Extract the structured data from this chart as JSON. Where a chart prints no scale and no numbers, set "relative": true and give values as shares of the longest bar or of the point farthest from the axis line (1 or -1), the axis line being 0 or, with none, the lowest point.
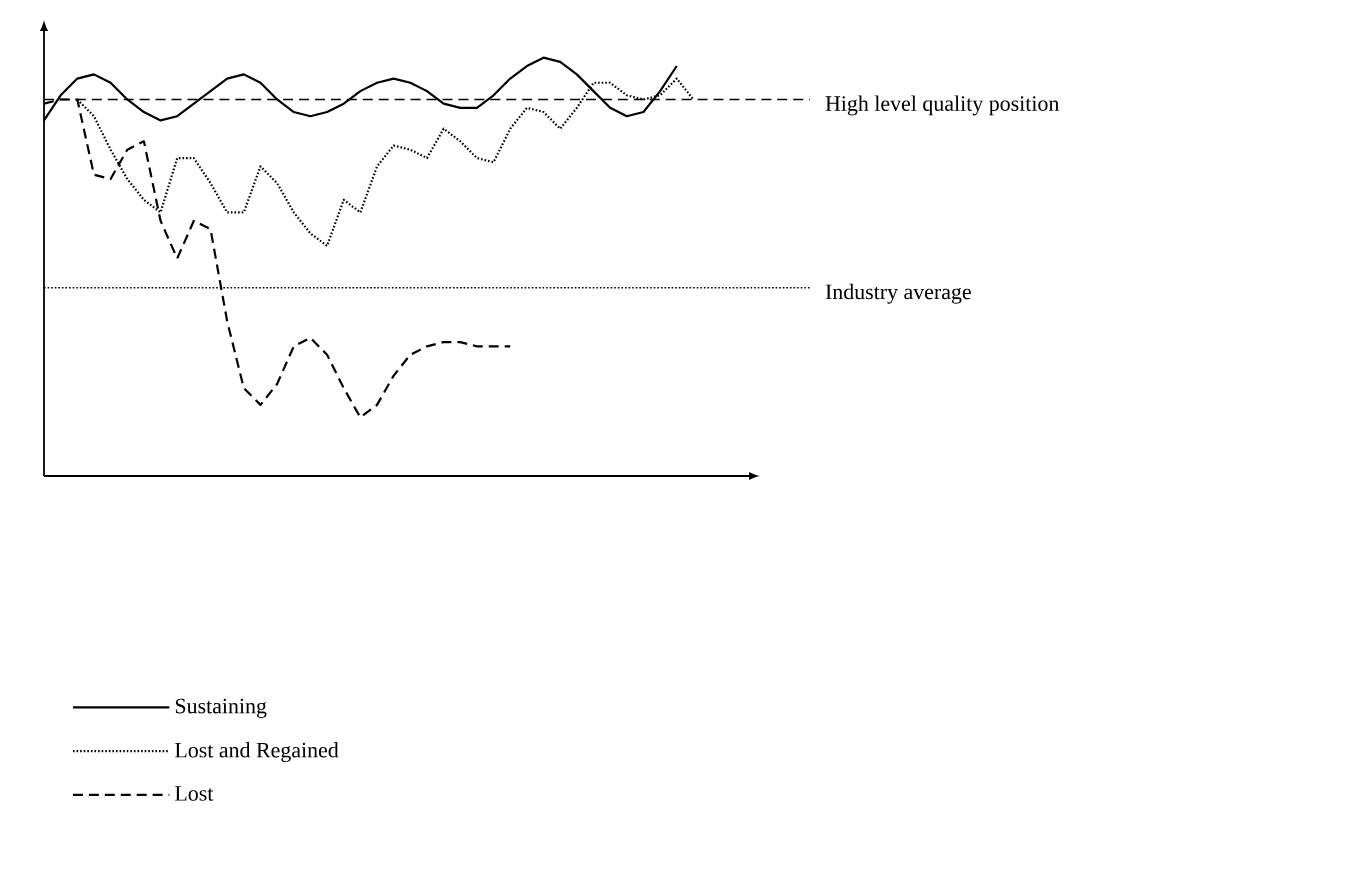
{
  "chart_data": {
    "type": "line",
    "relative": true,
    "legend": "bottom",
    "categories": [
      null,
      null,
      null,
      null,
      null,
      null,
      null,
      null,
      null,
      null,
      null,
      null,
      null,
      null,
      null,
      null,
      null,
      null,
      null,
      null,
      null,
      null,
      null,
      null,
      null,
      null,
      null,
      null,
      null,
      null,
      null,
      null,
      null,
      null,
      null,
      null,
      null,
      null,
      null,
      null
    ],
    "series": [
      {
        "name": "Sustaining",
        "color": "#000000",
        "line_style": "solid",
        "values": [
          0.85,
          0.91,
          0.95,
          0.96,
          0.94,
          0.9,
          0.87,
          0.85,
          0.86,
          0.89,
          0.92,
          0.95,
          0.96,
          0.94,
          0.9,
          0.87,
          0.86,
          0.87,
          0.89,
          0.92,
          0.94,
          0.95,
          0.94,
          0.92,
          0.89,
          0.88,
          0.88,
          0.91,
          0.95,
          0.98,
          1,
          0.99,
          0.96,
          0.92,
          0.88,
          0.86,
          0.87,
          0.92,
          0.98,
          null
        ]
      },
      {
        "name": "Lost and Regained",
        "color": "#000000",
        "line_style": "dotted",
        "values": [
          null,
          null,
          0.9,
          0.86,
          0.78,
          0.71,
          0.66,
          0.63,
          0.76,
          0.76,
          0.7,
          0.63,
          0.63,
          0.74,
          0.7,
          0.63,
          0.58,
          0.55,
          0.66,
          0.63,
          0.74,
          0.79,
          0.78,
          0.76,
          0.83,
          0.8,
          0.76,
          0.75,
          0.83,
          0.88,
          0.87,
          0.83,
          0.88,
          0.94,
          0.94,
          0.91,
          0.9,
          0.91,
          0.95,
          0.9
        ]
      },
      {
        "name": "Lost",
        "color": "#000000",
        "line_style": "dashed",
        "values": [
          0.89,
          0.9,
          0.9,
          0.72,
          0.71,
          0.78,
          0.8,
          0.61,
          0.52,
          0.61,
          0.59,
          0.37,
          0.21,
          0.17,
          0.22,
          0.31,
          0.33,
          0.29,
          0.21,
          0.14,
          0.17,
          0.24,
          0.29,
          0.31,
          0.32,
          0.32,
          0.31,
          0.31,
          0.31,
          null,
          null,
          null,
          null,
          null,
          null,
          null,
          null,
          null,
          null,
          null
        ]
      }
    ],
    "ref_lines": [
      {
        "axis": "y",
        "value": 0.9,
        "label": "High level quality position",
        "line_style": "dashed"
      },
      {
        "axis": "y",
        "value": 0.45,
        "label": "Industry average",
        "line_style": "dotted"
      }
    ]
  }
}
